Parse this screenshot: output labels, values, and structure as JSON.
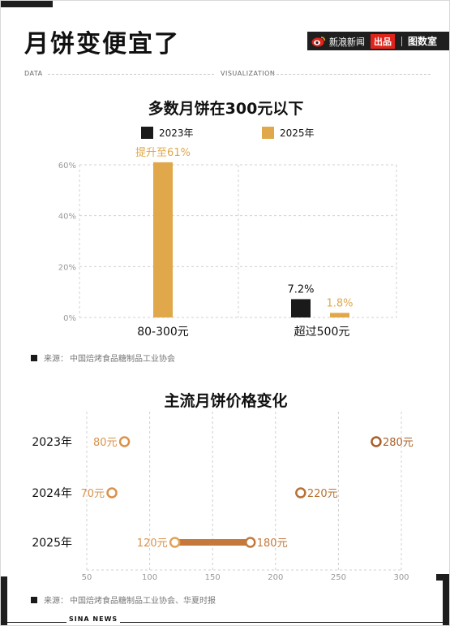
{
  "header": {
    "title": "月饼变便宜了",
    "brand_sina": "新浪新闻",
    "brand_sina_sub": "Sina News",
    "brand_produced": "出品",
    "brand_tushuo": "图数室",
    "data_label": "DATA",
    "visualization_label": "VISUALIZATION"
  },
  "colors": {
    "accent_gold": "#E0A84A",
    "black": "#1A1A1A",
    "line_gradient_start": "#EDB35E",
    "line_gradient_end": "#A8602A"
  },
  "chart_data": [
    {
      "type": "bar",
      "title": "多数月饼在300元以下",
      "categories": [
        "80-300元",
        "超过500元"
      ],
      "series": [
        {
          "name": "2023年",
          "values": [
            null,
            7.2
          ],
          "color": "#1A1A1A"
        },
        {
          "name": "2025年",
          "values": [
            61,
            1.8
          ],
          "color": "#E0A84A"
        }
      ],
      "data_labels": [
        {
          "series": "2025年",
          "category": "80-300元",
          "text": "提升至61%"
        },
        {
          "series": "2023年",
          "category": "超过500元",
          "text": "7.2%"
        },
        {
          "series": "2025年",
          "category": "超过500元",
          "text": "1.8%"
        }
      ],
      "yticks": [
        "0%",
        "20%",
        "40%",
        "60%"
      ],
      "ylim": [
        0,
        60
      ],
      "grid": true,
      "legend": "top-center",
      "source_label": "来源：",
      "source_text": "中国焙烤食品糖制品工业协会"
    },
    {
      "type": "range",
      "title": "主流月饼价格变化",
      "rows": [
        {
          "label": "2023年",
          "min": 80,
          "max": 280,
          "min_label": "80元",
          "max_label": "280元"
        },
        {
          "label": "2024年",
          "min": 70,
          "max": 220,
          "min_label": "70元",
          "max_label": "220元"
        },
        {
          "label": "2025年",
          "min": 120,
          "max": 180,
          "min_label": "120元",
          "max_label": "180元"
        }
      ],
      "xticks": [
        50,
        100,
        150,
        200,
        250,
        300
      ],
      "xlim": [
        50,
        300
      ],
      "grid": true,
      "source_label": "来源：",
      "source_text": "中国焙烤食品糖制品工业协会、华夏时报"
    }
  ],
  "footer": {
    "text": "SINA NEWS"
  }
}
